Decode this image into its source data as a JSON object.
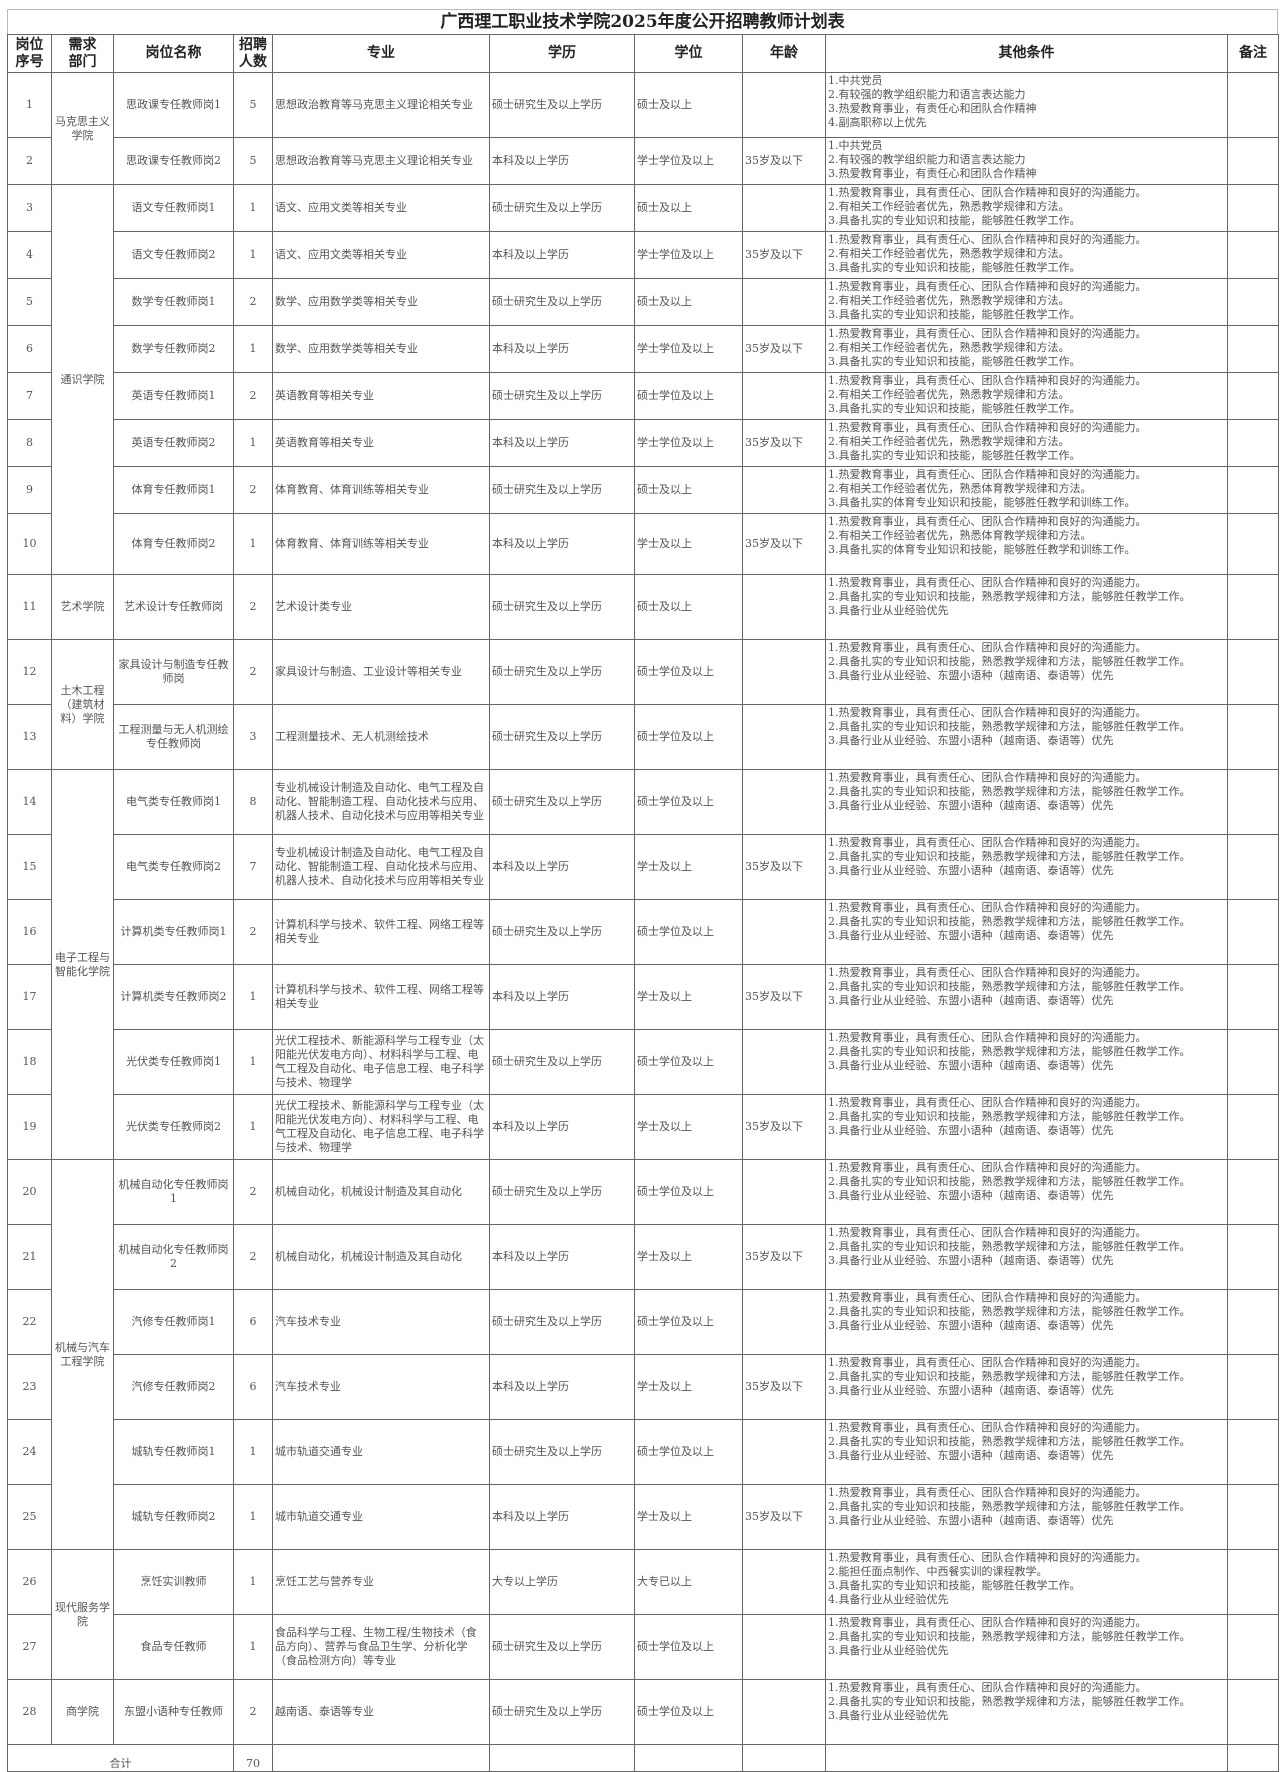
{
  "title": "广西理工职业技术学院2025年度公开招聘教师计划表",
  "headers": [
    "岗位\n序号",
    "需求\n部门",
    "岗位名称",
    "招聘\n人数",
    "专业",
    "学历",
    "学位",
    "年龄",
    "其他条件",
    "备注"
  ],
  "departments": [
    {
      "name": "马克思主义学院",
      "rows": 2
    },
    {
      "name": "通识学院",
      "rows": 8
    },
    {
      "name": "艺术学院",
      "rows": 1
    },
    {
      "name": "土木工程（建筑材料）学院",
      "rows": 2
    },
    {
      "name": "电子工程与智能化学院",
      "rows": 6
    },
    {
      "name": "机械与汽车工程学院",
      "rows": 6
    },
    {
      "name": "现代服务学院",
      "rows": 2
    },
    {
      "name": "商学院",
      "rows": 1
    }
  ],
  "rows": [
    {
      "no": "1",
      "title": "思政课专任教师岗1",
      "count": "5",
      "major": "思想政治教育等马克思主义理论相关专业",
      "edu": "硕士研究生及以上学历",
      "degree": "硕士及以上",
      "age": "",
      "cond": "1.中共党员\n2.有较强的教学组织能力和语言表达能力\n3.热爱教育事业，有责任心和团队合作精神\n4.副高职称以上优先",
      "note": ""
    },
    {
      "no": "2",
      "title": "思政课专任教师岗2",
      "count": "5",
      "major": "思想政治教育等马克思主义理论相关专业",
      "edu": "本科及以上学历",
      "degree": "学士学位及以上",
      "age": "35岁及以下",
      "cond": "1.中共党员\n2.有较强的教学组织能力和语言表达能力\n3.热爱教育事业，有责任心和团队合作精神",
      "note": ""
    },
    {
      "no": "3",
      "title": "语文专任教师岗1",
      "count": "1",
      "major": "语文、应用文类等相关专业",
      "edu": "硕士研究生及以上学历",
      "degree": "硕士及以上",
      "age": "",
      "cond": "1.热爱教育事业，具有责任心、团队合作精神和良好的沟通能力。\n2.有相关工作经验者优先，熟悉教学规律和方法。\n3.具备扎实的专业知识和技能，能够胜任教学工作。",
      "note": ""
    },
    {
      "no": "4",
      "title": "语文专任教师岗2",
      "count": "1",
      "major": "语文、应用文类等相关专业",
      "edu": "本科及以上学历",
      "degree": "学士学位及以上",
      "age": "35岁及以下",
      "cond": "1.热爱教育事业，具有责任心、团队合作精神和良好的沟通能力。\n2.有相关工作经验者优先，熟悉教学规律和方法。\n3.具备扎实的专业知识和技能，能够胜任教学工作。",
      "note": ""
    },
    {
      "no": "5",
      "title": "数学专任教师岗1",
      "count": "2",
      "major": "数学、应用数学类等相关专业",
      "edu": "硕士研究生及以上学历",
      "degree": "硕士及以上",
      "age": "",
      "cond": "1.热爱教育事业，具有责任心、团队合作精神和良好的沟通能力。\n2.有相关工作经验者优先，熟悉教学规律和方法。\n3.具备扎实的专业知识和技能，能够胜任教学工作。",
      "note": ""
    },
    {
      "no": "6",
      "title": "数学专任教师岗2",
      "count": "1",
      "major": "数学、应用数学类等相关专业",
      "edu": "本科及以上学历",
      "degree": "学士学位及以上",
      "age": "35岁及以下",
      "cond": "1.热爱教育事业，具有责任心、团队合作精神和良好的沟通能力。\n2.有相关工作经验者优先，熟悉教学规律和方法。\n3.具备扎实的专业知识和技能，能够胜任教学工作。",
      "note": ""
    },
    {
      "no": "7",
      "title": "英语专任教师岗1",
      "count": "2",
      "major": "英语教育等相关专业",
      "edu": "硕士研究生及以上学历",
      "degree": "硕士学位及以上",
      "age": "",
      "cond": "1.热爱教育事业，具有责任心、团队合作精神和良好的沟通能力。\n2.有相关工作经验者优先，熟悉教学规律和方法。\n3.具备扎实的专业知识和技能，能够胜任教学工作。",
      "note": ""
    },
    {
      "no": "8",
      "title": "英语专任教师岗2",
      "count": "1",
      "major": "英语教育等相关专业",
      "edu": "本科及以上学历",
      "degree": "学士学位及以上",
      "age": "35岁及以下",
      "cond": "1.热爱教育事业，具有责任心、团队合作精神和良好的沟通能力。\n2.有相关工作经验者优先，熟悉教学规律和方法。\n3.具备扎实的专业知识和技能，能够胜任教学工作。",
      "note": ""
    },
    {
      "no": "9",
      "title": "体育专任教师岗1",
      "count": "2",
      "major": "体育教育、体育训练等相关专业",
      "edu": "硕士研究生及以上学历",
      "degree": "硕士及以上",
      "age": "",
      "cond": "1.热爱教育事业，具有责任心、团队合作精神和良好的沟通能力。\n2.有相关工作经验者优先，熟悉体育教学规律和方法。\n3.具备扎实的体育专业知识和技能，能够胜任教学和训练工作。",
      "note": ""
    },
    {
      "no": "10",
      "title": "体育专任教师岗2",
      "count": "1",
      "major": "体育教育、体育训练等相关专业",
      "edu": "本科及以上学历",
      "degree": "学士及以上",
      "age": "35岁及以下",
      "cond": "1.热爱教育事业，具有责任心、团队合作精神和良好的沟通能力。\n2.有相关工作经验者优先，熟悉体育教学规律和方法。\n3.具备扎实的体育专业知识和技能，能够胜任教学和训练工作。",
      "note": ""
    },
    {
      "no": "11",
      "title": "艺术设计专任教师岗",
      "count": "2",
      "major": "艺术设计类专业",
      "edu": "硕士研究生及以上学历",
      "degree": "硕士及以上",
      "age": "",
      "cond": "1.热爱教育事业，具有责任心、团队合作精神和良好的沟通能力。\n2.具备扎实的专业知识和技能，熟悉教学规律和方法，能够胜任教学工作。\n3.具备行业从业经验优先",
      "note": ""
    },
    {
      "no": "12",
      "title": "家具设计与制造专任教师岗",
      "count": "2",
      "major": "家具设计与制造、工业设计等相关专业",
      "edu": "硕士研究生及以上学历",
      "degree": "硕士学位及以上",
      "age": "",
      "cond": "1.热爱教育事业，具有责任心、团队合作精神和良好的沟通能力。\n2.具备扎实的专业知识和技能，熟悉教学规律和方法，能够胜任教学工作。\n3.具备行业从业经验、东盟小语种（越南语、泰语等）优先",
      "note": ""
    },
    {
      "no": "13",
      "title": "工程测量与无人机测绘专任教师岗",
      "count": "3",
      "major": "工程测量技术、无人机测绘技术",
      "edu": "硕士研究生及以上学历",
      "degree": "硕士学位及以上",
      "age": "",
      "cond": "1.热爱教育事业，具有责任心、团队合作精神和良好的沟通能力。\n2.具备扎实的专业知识和技能，熟悉教学规律和方法，能够胜任教学工作。\n3.具备行业从业经验、东盟小语种（越南语、泰语等）优先",
      "note": ""
    },
    {
      "no": "14",
      "title": "电气类专任教师岗1",
      "count": "8",
      "major": "专业机械设计制造及自动化、电气工程及自动化、智能制造工程、自动化技术与应用、机器人技术、自动化技术与应用等相关专业",
      "edu": "硕士研究生及以上学历",
      "degree": "硕士学位及以上",
      "age": "",
      "cond": "1.热爱教育事业，具有责任心、团队合作精神和良好的沟通能力。\n2.具备扎实的专业知识和技能，熟悉教学规律和方法，能够胜任教学工作。\n3.具备行业从业经验、东盟小语种（越南语、泰语等）优先",
      "note": ""
    },
    {
      "no": "15",
      "title": "电气类专任教师岗2",
      "count": "7",
      "major": "专业机械设计制造及自动化、电气工程及自动化、智能制造工程、自动化技术与应用、机器人技术、自动化技术与应用等相关专业",
      "edu": "本科及以上学历",
      "degree": "学士及以上",
      "age": "35岁及以下",
      "cond": "1.热爱教育事业，具有责任心、团队合作精神和良好的沟通能力。\n2.具备扎实的专业知识和技能，熟悉教学规律和方法，能够胜任教学工作。\n3.具备行业从业经验、东盟小语种（越南语、泰语等）优先",
      "note": ""
    },
    {
      "no": "16",
      "title": "计算机类专任教师岗1",
      "count": "2",
      "major": "计算机科学与技术、软件工程、网络工程等相关专业",
      "edu": "硕士研究生及以上学历",
      "degree": "硕士学位及以上",
      "age": "",
      "cond": "1.热爱教育事业，具有责任心、团队合作精神和良好的沟通能力。\n2.具备扎实的专业知识和技能，熟悉教学规律和方法，能够胜任教学工作。\n3.具备行业从业经验、东盟小语种（越南语、泰语等）优先",
      "note": ""
    },
    {
      "no": "17",
      "title": "计算机类专任教师岗2",
      "count": "1",
      "major": "计算机科学与技术、软件工程、网络工程等相关专业",
      "edu": "本科及以上学历",
      "degree": "学士及以上",
      "age": "35岁及以下",
      "cond": "1.热爱教育事业，具有责任心、团队合作精神和良好的沟通能力。\n2.具备扎实的专业知识和技能，熟悉教学规律和方法，能够胜任教学工作。\n3.具备行业从业经验、东盟小语种（越南语、泰语等）优先",
      "note": ""
    },
    {
      "no": "18",
      "title": "光伏类专任教师岗1",
      "count": "1",
      "major": "光伏工程技术、新能源科学与工程专业（太阳能光伏发电方向）、材料科学与工程、电气工程及自动化、电子信息工程、电子科学与技术、物理学",
      "edu": "硕士研究生及以上学历",
      "degree": "硕士学位及以上",
      "age": "",
      "cond": "1.热爱教育事业，具有责任心、团队合作精神和良好的沟通能力。\n2.具备扎实的专业知识和技能，熟悉教学规律和方法，能够胜任教学工作。\n3.具备行业从业经验、东盟小语种（越南语、泰语等）优先",
      "note": ""
    },
    {
      "no": "19",
      "title": "光伏类专任教师岗2",
      "count": "1",
      "major": "光伏工程技术、新能源科学与工程专业（太阳能光伏发电方向）、材料科学与工程、电气工程及自动化、电子信息工程、电子科学与技术、物理学",
      "edu": "本科及以上学历",
      "degree": "学士及以上",
      "age": "35岁及以下",
      "cond": "1.热爱教育事业，具有责任心、团队合作精神和良好的沟通能力。\n2.具备扎实的专业知识和技能，熟悉教学规律和方法，能够胜任教学工作。\n3.具备行业从业经验、东盟小语种（越南语、泰语等）优先",
      "note": ""
    },
    {
      "no": "20",
      "title": "机械自动化专任教师岗1",
      "count": "2",
      "major": "机械自动化，机械设计制造及其自动化",
      "edu": "硕士研究生及以上学历",
      "degree": "硕士学位及以上",
      "age": "",
      "cond": "1.热爱教育事业，具有责任心、团队合作精神和良好的沟通能力。\n2.具备扎实的专业知识和技能，熟悉教学规律和方法，能够胜任教学工作。\n3.具备行业从业经验、东盟小语种（越南语、泰语等）优先",
      "note": ""
    },
    {
      "no": "21",
      "title": "机械自动化专任教师岗2",
      "count": "2",
      "major": "机械自动化，机械设计制造及其自动化",
      "edu": "本科及以上学历",
      "degree": "学士及以上",
      "age": "35岁及以下",
      "cond": "1.热爱教育事业，具有责任心、团队合作精神和良好的沟通能力。\n2.具备扎实的专业知识和技能，熟悉教学规律和方法，能够胜任教学工作。\n3.具备行业从业经验、东盟小语种（越南语、泰语等）优先",
      "note": ""
    },
    {
      "no": "22",
      "title": "汽修专任教师岗1",
      "count": "6",
      "major": "汽车技术专业",
      "edu": "硕士研究生及以上学历",
      "degree": "硕士学位及以上",
      "age": "",
      "cond": "1.热爱教育事业，具有责任心、团队合作精神和良好的沟通能力。\n2.具备扎实的专业知识和技能，熟悉教学规律和方法，能够胜任教学工作。\n3.具备行业从业经验、东盟小语种（越南语、泰语等）优先",
      "note": ""
    },
    {
      "no": "23",
      "title": "汽修专任教师岗2",
      "count": "6",
      "major": "汽车技术专业",
      "edu": "本科及以上学历",
      "degree": "学士及以上",
      "age": "35岁及以下",
      "cond": "1.热爱教育事业，具有责任心、团队合作精神和良好的沟通能力。\n2.具备扎实的专业知识和技能，熟悉教学规律和方法，能够胜任教学工作。\n3.具备行业从业经验、东盟小语种（越南语、泰语等）优先",
      "note": ""
    },
    {
      "no": "24",
      "title": "城轨专任教师岗1",
      "count": "1",
      "major": "城市轨道交通专业",
      "edu": "硕士研究生及以上学历",
      "degree": "硕士学位及以上",
      "age": "",
      "cond": "1.热爱教育事业，具有责任心、团队合作精神和良好的沟通能力。\n2.具备扎实的专业知识和技能，熟悉教学规律和方法，能够胜任教学工作。\n3.具备行业从业经验、东盟小语种（越南语、泰语等）优先",
      "note": ""
    },
    {
      "no": "25",
      "title": "城轨专任教师岗2",
      "count": "1",
      "major": "城市轨道交通专业",
      "edu": "本科及以上学历",
      "degree": "学士及以上",
      "age": "35岁及以下",
      "cond": "1.热爱教育事业，具有责任心、团队合作精神和良好的沟通能力。\n2.具备扎实的专业知识和技能，熟悉教学规律和方法，能够胜任教学工作。\n3.具备行业从业经验、东盟小语种（越南语、泰语等）优先",
      "note": ""
    },
    {
      "no": "26",
      "title": "烹饪实训教师",
      "count": "1",
      "major": "烹饪工艺与营养专业",
      "edu": "大专以上学历",
      "degree": "大专已以上",
      "age": "",
      "cond": "1.热爱教育事业，具有责任心、团队合作精神和良好的沟通能力。\n2.能担任面点制作、中西餐实训的课程教学。\n3.具备扎实的专业知识和技能，能够胜任教学工作。\n4.具备行业从业经验优先",
      "note": ""
    },
    {
      "no": "27",
      "title": "食品专任教师",
      "count": "1",
      "major": "食品科学与工程、生物工程/生物技术（食品方向）、营养与食品卫生学、分析化学（食品检测方向）等专业",
      "edu": "硕士研究生及以上学历",
      "degree": "硕士学位及以上",
      "age": "",
      "cond": "1.热爱教育事业，具有责任心、团队合作精神和良好的沟通能力。\n2.具备扎实的专业知识和技能，熟悉教学规律和方法，能够胜任教学工作。\n3.具备行业从业经验优先",
      "note": ""
    },
    {
      "no": "28",
      "title": "东盟小语种专任教师",
      "count": "2",
      "major": "越南语、泰语等专业",
      "edu": "硕士研究生及以上学历",
      "degree": "硕士学位及以上",
      "age": "",
      "cond": "1.热爱教育事业，具有责任心、团队合作精神和良好的沟通能力。\n2.具备扎实的专业知识和技能，熟悉教学规律和方法，能够胜任教学工作。\n3.具备行业从业经验优先",
      "note": ""
    }
  ],
  "total": {
    "label": "合计",
    "count": "70"
  }
}
